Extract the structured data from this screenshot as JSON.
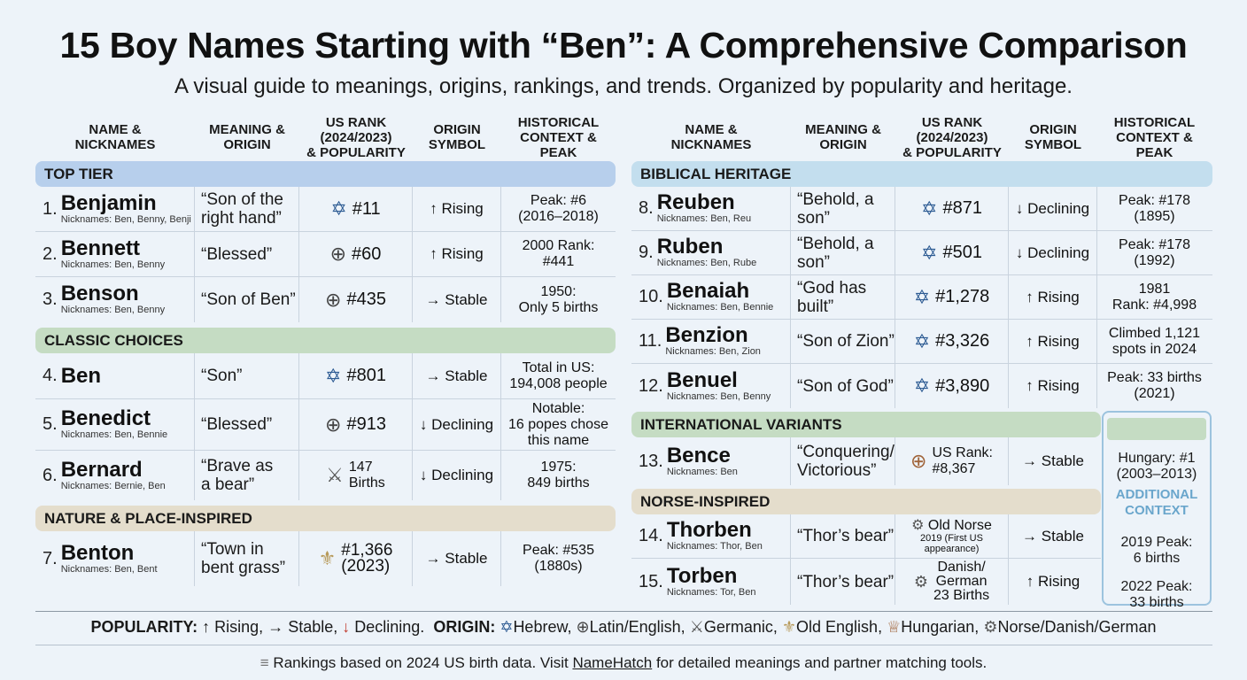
{
  "title": "15 Boy Names Starting with “Ben”: A Comprehensive Comparison",
  "subtitle": "A visual guide to meanings, origins, rankings, and trends. Organized by popularity and heritage.",
  "headers": {
    "name": "NAME &\nNICKNAMES",
    "meaning": "MEANING &\nORIGIN",
    "rank": "US RANK\n(2024/2023)\n& POPULARITY",
    "origin": "ORIGIN\nSYMBOL",
    "history": "HISTORICAL\nCONTEXT & PEAK"
  },
  "sections": {
    "top_tier": "TOP TIER",
    "classic": "CLASSIC CHOICES",
    "nature": "NATURE & PLACE-INSPIRED",
    "biblical": "BIBLICAL HERITAGE",
    "international": "INTERNATIONAL VARIANTS",
    "norse": "NORSE-INSPIRED"
  },
  "names": [
    {
      "num": "1.",
      "name": "Benjamin",
      "nick": "Nicknames: Ben, Benny, Benji",
      "meaning": "“Son of the right hand”",
      "symbol": "✡",
      "rank": "#11",
      "trend": "↑ Rising",
      "history": "Peak: #6\n(2016–2018)"
    },
    {
      "num": "2.",
      "name": "Bennett",
      "nick": "Nicknames: Ben, Benny",
      "meaning": "“Blessed”",
      "symbol": "⊕",
      "rank": "#60",
      "trend": "↑ Rising",
      "history": "2000 Rank:\n#441"
    },
    {
      "num": "3.",
      "name": "Benson",
      "nick": "Nicknames: Ben, Benny",
      "meaning": "“Son of Ben”",
      "symbol": "⊕",
      "rank": "#435",
      "trend": "→ Stable",
      "history": "1950:\nOnly 5 births"
    },
    {
      "num": "4.",
      "name": "Ben",
      "nick": "",
      "meaning": "“Son”",
      "symbol": "✡",
      "rank": "#801",
      "trend": "→ Stable",
      "history": "Total in US:\n194,008 people"
    },
    {
      "num": "5.",
      "name": "Benedict",
      "nick": "Nicknames: Ben, Bennie",
      "meaning": "“Blessed”",
      "symbol": "⊕",
      "rank": "#913",
      "trend": "↓ Declining",
      "history": "Notable:\n16 popes chose\nthis name"
    },
    {
      "num": "6.",
      "name": "Bernard",
      "nick": "Nicknames: Bernie, Ben",
      "meaning": "“Brave as\na bear”",
      "symbol": "⚔",
      "rank": "147\nBirths",
      "trend": "↓ Declining",
      "history": "1975:\n849 births"
    },
    {
      "num": "7.",
      "name": "Benton",
      "nick": "Nicknames: Ben, Bent",
      "meaning": "“Town in\nbent grass”",
      "symbol": "⚜",
      "rank": "#1,366\n(2023)",
      "trend": "→ Stable",
      "history": "Peak: #535\n(1880s)"
    },
    {
      "num": "8.",
      "name": "Reuben",
      "nick": "Nicknames: Ben, Reu",
      "meaning": "“Behold, a son”",
      "symbol": "✡",
      "rank": "#871",
      "trend": "↓ Declining",
      "history": "Peak: #178\n(1895)"
    },
    {
      "num": "9.",
      "name": "Ruben",
      "nick": "Nicknames: Ben, Rube",
      "meaning": "“Behold, a son”",
      "symbol": "✡",
      "rank": "#501",
      "trend": "↓ Declining",
      "history": "Peak: #178\n(1992)"
    },
    {
      "num": "10.",
      "name": "Benaiah",
      "nick": "Nicknames: Ben, Bennie",
      "meaning": "“God has built”",
      "symbol": "✡",
      "rank": "#1,278",
      "trend": "↑ Rising",
      "history": "1981\nRank: #4,998"
    },
    {
      "num": "11.",
      "name": "Benzion",
      "nick": "Nicknames: Ben, Zion",
      "meaning": "“Son of Zion”",
      "symbol": "✡",
      "rank": "#3,326",
      "trend": "↑ Rising",
      "history": "Climbed 1,121\nspots in 2024"
    },
    {
      "num": "12.",
      "name": "Benuel",
      "nick": "Nicknames: Ben, Benny",
      "meaning": "“Son of God”",
      "symbol": "✡",
      "rank": "#3,890",
      "trend": "↑ Rising",
      "history": "Peak: 33 births\n(2021)"
    },
    {
      "num": "13.",
      "name": "Bence",
      "nick": "Nicknames: Ben",
      "meaning": "“Conquering/\nVictorious”",
      "symbol": "⊕",
      "rank": "US Rank:\n#8,367",
      "trend": "→ Stable",
      "history": ""
    },
    {
      "num": "14.",
      "name": "Thorben",
      "nick": "Nicknames: Thor, Ben",
      "meaning": "“Thor’s bear”",
      "symbol": "⚙",
      "rank": "Old Norse",
      "rank_note": "2019 (First US\nappearance)",
      "trend": "→ Stable",
      "history": ""
    },
    {
      "num": "15.",
      "name": "Torben",
      "nick": "Nicknames: Tor, Ben",
      "meaning": "“Thor’s bear”",
      "symbol": "⚙",
      "rank": "Danish/\nGerman\n23 Births",
      "trend": "↑ Rising",
      "history": ""
    }
  ],
  "additional": {
    "label": "ADDITIONAL\nCONTEXT",
    "hungary": "Hungary: #1\n(2003–2013)",
    "peak2019": "2019 Peak:\n6 births",
    "peak2022": "2022 Peak:\n33 births"
  },
  "legend": {
    "popularity_label": "POPULARITY:",
    "rising": "↑ Rising,",
    "stable": "→ Stable,",
    "declining_arrow": "↓",
    "declining": "Declining.",
    "origin_label": "ORIGIN:",
    "hebrew": "Hebrew,",
    "latin": "Latin/English,",
    "germanic": "Germanic,",
    "oldenglish": "Old English,",
    "hungarian": "Hungarian,",
    "norse": "Norse/Danish/German"
  },
  "footer": {
    "icon": "≡",
    "pre": "Rankings based on 2024 US birth data. Visit",
    "link": "NameHatch",
    "post": "for detailed meanings and partner matching tools."
  },
  "colors": {
    "hebrew_symbol": "#2d5b93",
    "band_blue": "#b7cfec",
    "band_green": "#c5dcc3",
    "band_tan": "#e4ddcc",
    "band_light_blue": "#c3deee",
    "additional_label": "#6aa6cc",
    "declining_red": "#c0392b"
  }
}
